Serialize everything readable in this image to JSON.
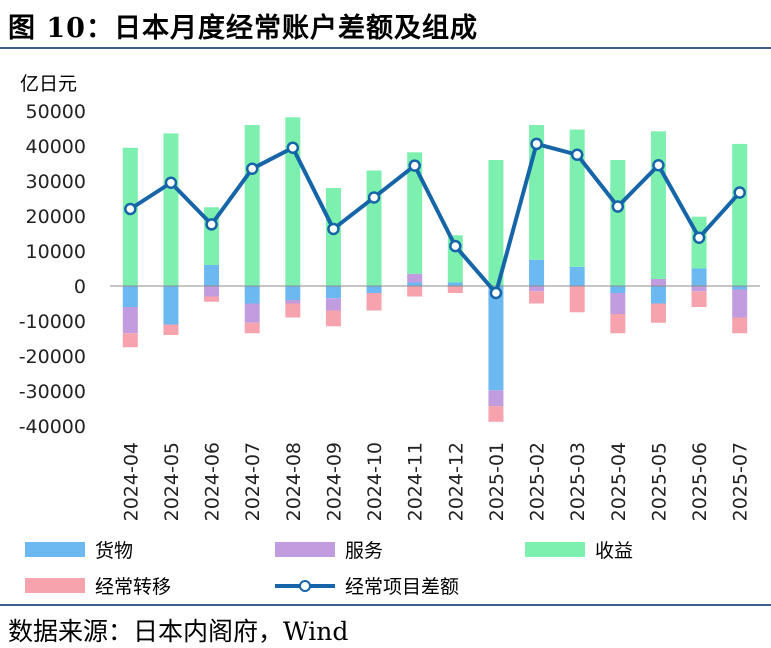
{
  "title": "图 10：日本月度经常账户差额及组成",
  "source": "数据来源：日本内阁府，Wind",
  "colors": {
    "goods": "#6cb9f2",
    "services": "#c19de0",
    "income": "#7df0b0",
    "transfers": "#f6a3ad",
    "current_account": "#1565a8",
    "rule": "#3a5f8f"
  },
  "legend": {
    "goods": "货物",
    "services": "服务",
    "income": "收益",
    "transfers": "经常转移",
    "current_account": "经常项目差额"
  },
  "chart_data": {
    "type": "bar",
    "stacked": true,
    "unit_label": "亿日元",
    "categories": [
      "2024-04",
      "2024-05",
      "2024-06",
      "2024-07",
      "2024-08",
      "2024-09",
      "2024-10",
      "2024-11",
      "2024-12",
      "2025-01",
      "2025-02",
      "2025-03",
      "2025-04",
      "2025-05",
      "2025-06",
      "2025-07"
    ],
    "ylim": [
      -40000,
      50000
    ],
    "yticks": [
      -40000,
      -30000,
      -20000,
      -10000,
      0,
      10000,
      20000,
      30000,
      40000,
      50000
    ],
    "series": [
      {
        "name": "货物",
        "key": "goods",
        "kind": "bar",
        "values": [
          -6000,
          -11000,
          6000,
          -5000,
          -4000,
          -3500,
          -2000,
          1000,
          1000,
          -29800,
          7500,
          5500,
          -2000,
          -5000,
          5000,
          -1000
        ]
      },
      {
        "name": "服务",
        "key": "services",
        "kind": "bar",
        "values": [
          -7500,
          0,
          -3000,
          -5500,
          -1000,
          -3500,
          0,
          2500,
          0,
          -4500,
          -1500,
          0,
          -6000,
          2000,
          -1500,
          -8000
        ]
      },
      {
        "name": "收益",
        "key": "income",
        "kind": "bar",
        "values": [
          39500,
          43600,
          16500,
          46000,
          48200,
          28000,
          33000,
          34700,
          13500,
          36000,
          38500,
          39200,
          36000,
          42200,
          14800,
          40600
        ]
      },
      {
        "name": "经常转移",
        "key": "transfers",
        "kind": "bar",
        "values": [
          -4000,
          -3000,
          -1500,
          -3000,
          -4000,
          -4500,
          -5000,
          -3000,
          -2000,
          -4500,
          -3500,
          -7500,
          -5500,
          -5500,
          -4500,
          -4500
        ]
      },
      {
        "name": "经常项目差额",
        "key": "current_account",
        "kind": "line",
        "values": [
          22000,
          29500,
          17600,
          33500,
          39500,
          16300,
          25300,
          34400,
          11400,
          -2000,
          40600,
          37500,
          22700,
          34500,
          13800,
          26700
        ]
      }
    ],
    "grid": false
  }
}
